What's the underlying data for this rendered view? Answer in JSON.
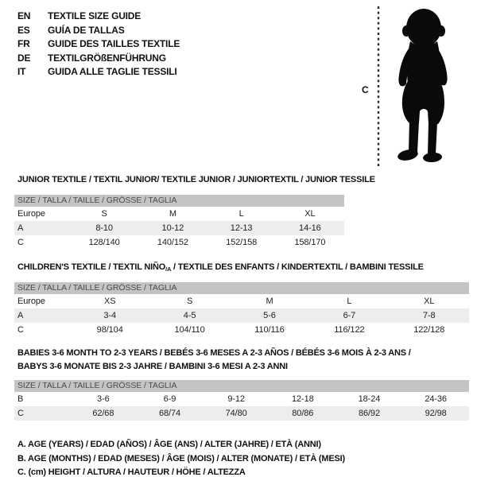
{
  "colors": {
    "header_bar": "#c4c4c4",
    "alt_row": "#ededed",
    "bar_text": "#4a4a4a",
    "text": "#111111",
    "silhouette": "#0a0a0a"
  },
  "languages": [
    {
      "code": "EN",
      "label": "TEXTILE SIZE GUIDE"
    },
    {
      "code": "ES",
      "label": "GUÍA DE TALLAS"
    },
    {
      "code": "FR",
      "label": "GUIDE DES TAILLES TEXTILE"
    },
    {
      "code": "DE",
      "label": "TEXTILGRÖßENFÜHRUNG"
    },
    {
      "code": "IT",
      "label": "GUIDA ALLE TAGLIE TESSILI"
    }
  ],
  "figure": {
    "measure_label": "C"
  },
  "size_bar_label": "SIZE / TALLA / TAILLE / GRÖSSE / TAGLIA",
  "sections": [
    {
      "title": "JUNIOR TEXTILE / TEXTIL JUNIOR/ TEXTILE JUNIOR / JUNIORTEXTIL / JUNIOR TESSILE",
      "rows": [
        [
          "Europe",
          "S",
          "M",
          "L",
          "XL"
        ],
        [
          "A",
          "8-10",
          "10-12",
          "12-13",
          "14-16"
        ],
        [
          "C",
          "128/140",
          "140/152",
          "152/158",
          "158/170"
        ]
      ]
    },
    {
      "title_prefix": "CHILDREN'S TEXTILE / TEXTIL NIÑO",
      "title_sub": "/A",
      "title_suffix": " / TEXTILE DES ENFANTS / KINDERTEXTIL / BAMBINI TESSILE",
      "rows": [
        [
          "Europe",
          "XS",
          "S",
          "M",
          "L",
          "XL"
        ],
        [
          "A",
          "3-4",
          "4-5",
          "5-6",
          "6-7",
          "7-8"
        ],
        [
          "C",
          "98/104",
          "104/110",
          "110/116",
          "116/122",
          "122/128"
        ]
      ]
    },
    {
      "title_line1": "BABIES 3-6 MONTH TO 2-3 YEARS / BEBÉS 3-6 MESES A 2-3 AÑOS / BÉBÉS 3-6 MOIS À 2-3 ANS /",
      "title_line2": "BABYS 3-6 MONATE BIS 2-3 JAHRE / BAMBINI 3-6 MESI A 2-3 ANNI",
      "rows": [
        [
          "B",
          "3-6",
          "6-9",
          "9-12",
          "12-18",
          "18-24",
          "24-36"
        ],
        [
          "C",
          "62/68",
          "68/74",
          "74/80",
          "80/86",
          "86/92",
          "92/98"
        ]
      ]
    }
  ],
  "footnotes": [
    "A. AGE (YEARS) / EDAD (AÑOS) / ÂGE (ANS) / ALTER (JAHRE) / ETÀ (ANNI)",
    "B. AGE (MONTHS) / EDAD (MESES) / ÂGE (MOIS) / ALTER (MONATE) / ETÀ (MESI)",
    "C. (cm) HEIGHT / ALTURA / HAUTEUR / HÖHE / ALTEZZA"
  ]
}
